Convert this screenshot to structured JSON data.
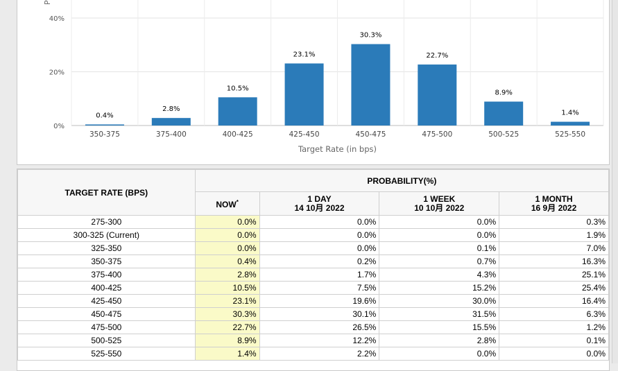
{
  "chart_data": {
    "type": "bar",
    "title": "",
    "xlabel": "Target Rate (in bps)",
    "ylabel": "Probability",
    "ylim": [
      0,
      45
    ],
    "y_ticks": [
      "0%",
      "20%",
      "40%"
    ],
    "y_tick_values": [
      0,
      20,
      40
    ],
    "categories": [
      "350-375",
      "375-400",
      "400-425",
      "425-450",
      "450-475",
      "475-500",
      "500-525",
      "525-550"
    ],
    "values": [
      0.4,
      2.8,
      10.5,
      23.1,
      30.3,
      22.7,
      8.9,
      1.4
    ],
    "value_labels": [
      "0.4%",
      "2.8%",
      "10.5%",
      "23.1%",
      "30.3%",
      "22.7%",
      "8.9%",
      "1.4%"
    ],
    "bar_color": "#2b7bb9",
    "grid": true
  },
  "table": {
    "rate_header": "TARGET RATE (BPS)",
    "prob_header": "PROBABILITY(%)",
    "now_label": "NOW",
    "now_mark": "*",
    "col_day_label": "1 DAY",
    "col_day_date": "14 10月 2022",
    "col_week_label": "1 WEEK",
    "col_week_date": "10 10月 2022",
    "col_month_label": "1 MONTH",
    "col_month_date": "16 9月 2022",
    "rows": [
      {
        "rate": "275-300",
        "now": "0.0%",
        "day": "0.0%",
        "week": "0.0%",
        "month": "0.3%"
      },
      {
        "rate": "300-325 (Current)",
        "now": "0.0%",
        "day": "0.0%",
        "week": "0.0%",
        "month": "1.9%"
      },
      {
        "rate": "325-350",
        "now": "0.0%",
        "day": "0.0%",
        "week": "0.1%",
        "month": "7.0%"
      },
      {
        "rate": "350-375",
        "now": "0.4%",
        "day": "0.2%",
        "week": "0.7%",
        "month": "16.3%"
      },
      {
        "rate": "375-400",
        "now": "2.8%",
        "day": "1.7%",
        "week": "4.3%",
        "month": "25.1%"
      },
      {
        "rate": "400-425",
        "now": "10.5%",
        "day": "7.5%",
        "week": "15.2%",
        "month": "25.4%"
      },
      {
        "rate": "425-450",
        "now": "23.1%",
        "day": "19.6%",
        "week": "30.0%",
        "month": "16.4%"
      },
      {
        "rate": "450-475",
        "now": "30.3%",
        "day": "30.1%",
        "week": "31.5%",
        "month": "6.3%"
      },
      {
        "rate": "475-500",
        "now": "22.7%",
        "day": "26.5%",
        "week": "15.5%",
        "month": "1.2%"
      },
      {
        "rate": "500-525",
        "now": "8.9%",
        "day": "12.2%",
        "week": "2.8%",
        "month": "0.1%"
      },
      {
        "rate": "525-550",
        "now": "1.4%",
        "day": "2.2%",
        "week": "0.0%",
        "month": "0.0%"
      }
    ]
  }
}
